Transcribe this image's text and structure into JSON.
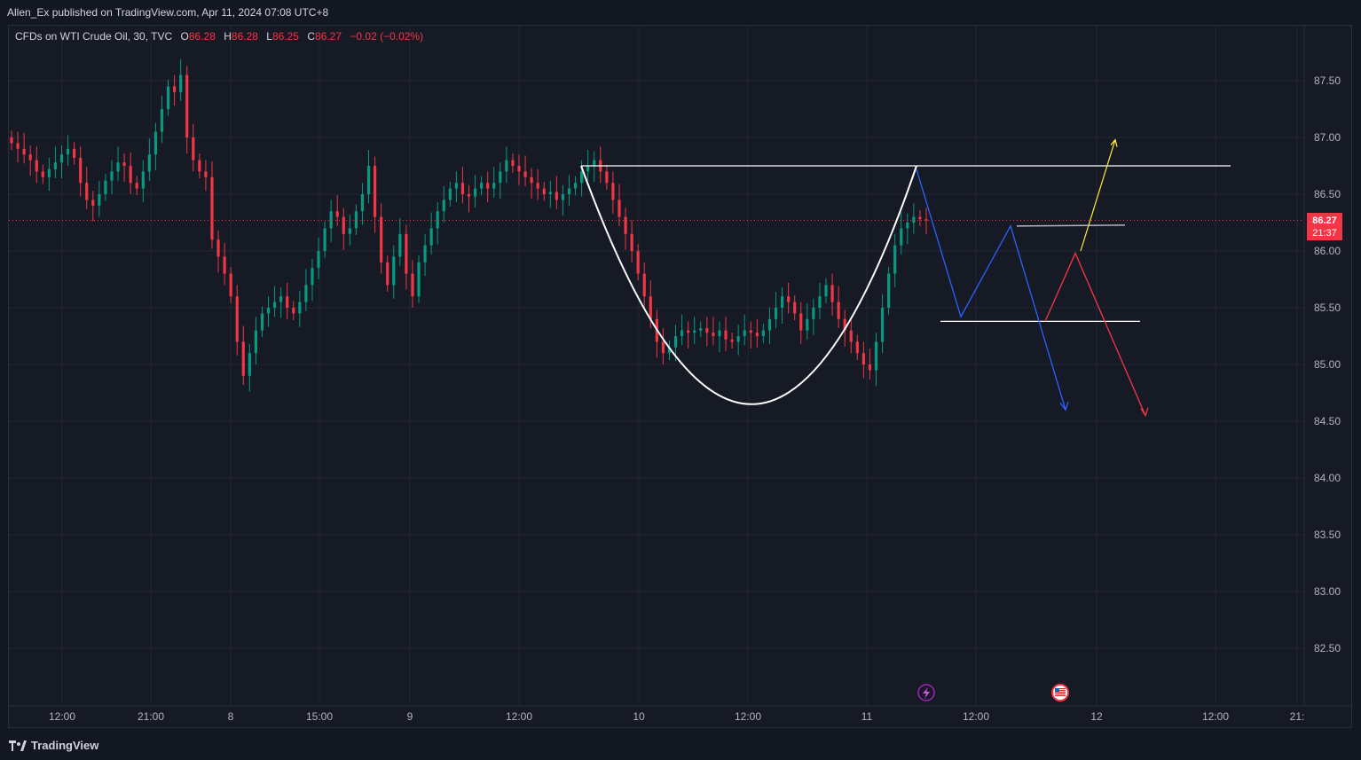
{
  "header": {
    "attribution": "Allen_Ex published on TradingView.com, Apr 11, 2024 07:08 UTC+8"
  },
  "legend": {
    "symbol": "CFDs on WTI Crude Oil, 30, TVC",
    "o_label": "O",
    "o_value": "86.28",
    "h_label": "H",
    "h_value": "86.28",
    "l_label": "L",
    "l_value": "86.25",
    "c_label": "C",
    "c_value": "86.27",
    "change": "−0.02 (−0.02%)"
  },
  "price_axis": {
    "ticks": [
      "87.50",
      "87.00",
      "86.50",
      "86.00",
      "85.50",
      "85.00",
      "84.50",
      "84.00",
      "83.50",
      "83.00",
      "82.50"
    ],
    "last_price": "86.27",
    "countdown": "21:37"
  },
  "time_axis": {
    "ticks": [
      "12:00",
      "21:00",
      "8",
      "15:00",
      "9",
      "12:00",
      "10",
      "12:00",
      "11",
      "12:00",
      "12",
      "12:00",
      "21:"
    ]
  },
  "events": [
    {
      "name": "lightning-event-icon",
      "color": "#9c27b0"
    },
    {
      "name": "us-flag-event-icon",
      "color": "#f23645"
    }
  ],
  "footer": {
    "brand": "TradingView"
  },
  "colors": {
    "background": "#161a25",
    "up": "#089981",
    "down": "#f23645",
    "grid": "#232632",
    "text": "#d1d4dc"
  },
  "chart_data": {
    "type": "candlestick",
    "title": "CFDs on WTI Crude Oil, 30, TVC",
    "ylim": [
      82.0,
      88.0
    ],
    "last_price": 86.27,
    "close_series_approx": [
      86.95,
      86.9,
      86.85,
      86.8,
      86.7,
      86.65,
      86.72,
      86.78,
      86.85,
      86.9,
      86.82,
      86.6,
      86.45,
      86.4,
      86.5,
      86.62,
      86.7,
      86.78,
      86.75,
      86.6,
      86.55,
      86.7,
      86.85,
      87.05,
      87.25,
      87.45,
      87.4,
      87.55,
      87.0,
      86.8,
      86.7,
      86.65,
      86.1,
      85.95,
      85.8,
      85.6,
      85.2,
      84.9,
      85.1,
      85.3,
      85.45,
      85.5,
      85.55,
      85.6,
      85.5,
      85.45,
      85.55,
      85.7,
      85.85,
      86.0,
      86.2,
      86.35,
      86.3,
      86.15,
      86.2,
      86.35,
      86.5,
      86.75,
      86.3,
      85.9,
      85.7,
      85.95,
      86.15,
      85.8,
      85.6,
      85.9,
      86.05,
      86.2,
      86.35,
      86.45,
      86.55,
      86.6,
      86.5,
      86.48,
      86.55,
      86.6,
      86.55,
      86.6,
      86.7,
      86.8,
      86.75,
      86.7,
      86.65,
      86.6,
      86.55,
      86.5,
      86.52,
      86.45,
      86.5,
      86.55,
      86.6,
      86.7,
      86.75,
      86.8,
      86.7,
      86.6,
      86.45,
      86.3,
      86.15,
      86.0,
      85.8,
      85.6,
      85.4,
      85.2,
      85.1,
      85.15,
      85.25,
      85.3,
      85.28,
      85.3,
      85.32,
      85.28,
      85.25,
      85.3,
      85.22,
      85.2,
      85.25,
      85.3,
      85.28,
      85.25,
      85.3,
      85.4,
      85.5,
      85.6,
      85.55,
      85.45,
      85.3,
      85.4,
      85.5,
      85.6,
      85.7,
      85.55,
      85.4,
      85.3,
      85.2,
      85.1,
      85.0,
      84.95,
      85.2,
      85.5,
      85.8,
      86.05,
      86.2,
      86.25,
      86.3,
      86.28,
      86.27
    ],
    "annotations": [
      {
        "type": "horizontal",
        "price": 86.75,
        "color": "#ffffff"
      },
      {
        "type": "cup-curve",
        "from": 86.75,
        "bottom": 84.62,
        "to": 86.75,
        "color": "#ffffff"
      },
      {
        "type": "horizontal",
        "price": 86.22,
        "color": "#b2b5be"
      },
      {
        "type": "horizontal",
        "price": 85.38,
        "color": "#ffffff"
      },
      {
        "type": "path",
        "color": "#2962ff",
        "points": [
          86.72,
          85.42,
          86.22,
          84.6
        ]
      },
      {
        "type": "path",
        "color": "#f23645",
        "points": [
          85.38,
          85.98,
          84.55
        ]
      },
      {
        "type": "arrow",
        "color": "#ffeb3b",
        "points": [
          86.0,
          86.98
        ]
      }
    ]
  }
}
